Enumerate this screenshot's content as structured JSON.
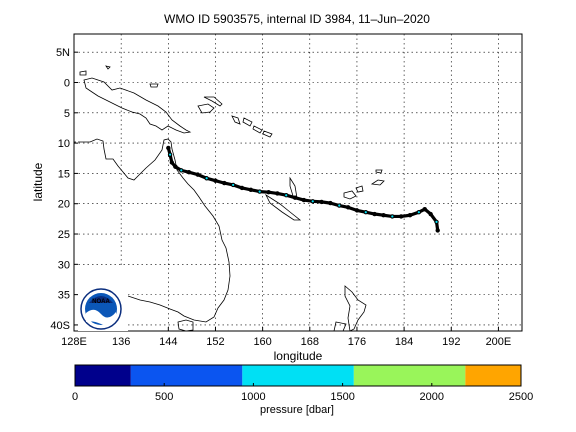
{
  "chart_data": {
    "type": "scatter",
    "title": "WMO ID 5903575, internal ID 3984, 11–Jun–2020",
    "xlabel": "longitude",
    "ylabel": "latitude",
    "xlim": [
      128,
      204
    ],
    "ylim": [
      -41,
      8
    ],
    "grid": true,
    "x_ticks": [
      {
        "v": 128,
        "label": "128E"
      },
      {
        "v": 136,
        "label": "136"
      },
      {
        "v": 144,
        "label": "144"
      },
      {
        "v": 152,
        "label": "152"
      },
      {
        "v": 160,
        "label": "160"
      },
      {
        "v": 168,
        "label": "168"
      },
      {
        "v": 176,
        "label": "176"
      },
      {
        "v": 184,
        "label": "184"
      },
      {
        "v": 192,
        "label": "192"
      },
      {
        "v": 200,
        "label": "200E"
      }
    ],
    "y_ticks": [
      {
        "v": 5,
        "label": "5N"
      },
      {
        "v": 0,
        "label": "0"
      },
      {
        "v": -5,
        "label": "5"
      },
      {
        "v": -10,
        "label": "10"
      },
      {
        "v": -15,
        "label": "15"
      },
      {
        "v": -20,
        "label": "20"
      },
      {
        "v": -25,
        "label": "25"
      },
      {
        "v": -30,
        "label": "30"
      },
      {
        "v": -35,
        "label": "35"
      },
      {
        "v": -40,
        "label": "40S"
      }
    ],
    "track": [
      [
        144.0,
        -10.8
      ],
      [
        144.3,
        -11.9
      ],
      [
        144.6,
        -13.2
      ],
      [
        145.2,
        -13.9
      ],
      [
        146.2,
        -14.5
      ],
      [
        147.5,
        -14.8
      ],
      [
        149.0,
        -15.2
      ],
      [
        150.5,
        -15.8
      ],
      [
        152.0,
        -16.2
      ],
      [
        153.5,
        -16.6
      ],
      [
        155.0,
        -16.9
      ],
      [
        156.5,
        -17.4
      ],
      [
        158.0,
        -17.7
      ],
      [
        159.5,
        -18.0
      ],
      [
        161.0,
        -18.1
      ],
      [
        162.5,
        -18.3
      ],
      [
        164.0,
        -18.6
      ],
      [
        165.5,
        -19.0
      ],
      [
        167.0,
        -19.4
      ],
      [
        168.5,
        -19.6
      ],
      [
        170.0,
        -19.7
      ],
      [
        171.5,
        -19.9
      ],
      [
        173.0,
        -20.3
      ],
      [
        174.5,
        -20.6
      ],
      [
        176.0,
        -21.1
      ],
      [
        177.5,
        -21.4
      ],
      [
        179.0,
        -21.7
      ],
      [
        180.5,
        -21.9
      ],
      [
        182.0,
        -22.1
      ],
      [
        183.5,
        -22.1
      ],
      [
        185.0,
        -21.9
      ],
      [
        186.5,
        -21.4
      ],
      [
        187.5,
        -20.9
      ],
      [
        188.5,
        -21.7
      ],
      [
        189.5,
        -23.0
      ],
      [
        189.7,
        -24.4
      ]
    ],
    "colorbar": {
      "label": "pressure [dbar]",
      "ticks": [
        0,
        500,
        1000,
        1500,
        2000,
        2500
      ],
      "range": [
        0,
        2500
      ],
      "bins": [
        {
          "from": 0,
          "to": 313,
          "color": "#00008c"
        },
        {
          "from": 313,
          "to": 938,
          "color": "#0b55f0"
        },
        {
          "from": 938,
          "to": 1563,
          "color": "#00e0f4"
        },
        {
          "from": 1563,
          "to": 2188,
          "color": "#99f55a"
        },
        {
          "from": 2188,
          "to": 2500,
          "color": "#ffa500"
        }
      ]
    }
  },
  "logo": {
    "text": "NOAA"
  }
}
